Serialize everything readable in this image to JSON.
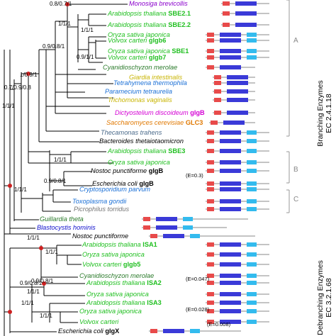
{
  "colors": {
    "green": "#1fbf1f",
    "gray": "#777777",
    "olive": "#2a7a2a",
    "yellow": "#c8b400",
    "blue": "#1a6fd6",
    "magenta": "#d400d4",
    "orange": "#e07800",
    "slate": "#4a6a8a",
    "black": "#000000",
    "purple": "#8a00cc",
    "dblue": "#1010cc",
    "lblue": "#2aa0e0",
    "domain_red": "#e84a4a",
    "domain_blue": "#3a3ad8",
    "domain_cyan": "#33bbee"
  },
  "taxa": [
    {
      "species": "Monosiga brevicollis",
      "gene": "",
      "color": "purple"
    },
    {
      "species": "Arabidopsis thaliana",
      "gene": "SBE2.1",
      "color": "green"
    },
    {
      "species": "Arabidopsis thaliana",
      "gene": "SBE2.2",
      "color": "green"
    },
    {
      "species": "Oryza sativa japonica",
      "gene": "",
      "color": "green"
    },
    {
      "species": "Volvox carteri",
      "gene": "glgb6",
      "color": "green"
    },
    {
      "species": "Oryza sativa japonica",
      "gene": "SBE1",
      "color": "green"
    },
    {
      "species": "Volvox carteri",
      "gene": "glgb7",
      "color": "green"
    },
    {
      "species": "Cyanidioschyzon merolae",
      "gene": "",
      "color": "olive"
    },
    {
      "species": "Giardia intestinalis",
      "gene": "",
      "color": "yellow"
    },
    {
      "species": "Tetrahymena thermophila",
      "gene": "",
      "color": "blue"
    },
    {
      "species": "Paramecium tetraurelia",
      "gene": "",
      "color": "blue"
    },
    {
      "species": "Trichomonas vaginalis",
      "gene": "",
      "color": "yellow"
    },
    {
      "species": "Dictyostelium discoideum",
      "gene": "glgB",
      "color": "magenta"
    },
    {
      "species": "Saccharomyces cerevisiae",
      "gene": "GLC3",
      "color": "orange"
    },
    {
      "species": "Thecamonas trahens",
      "gene": "",
      "color": "slate"
    },
    {
      "species": "Bacteroides thetaiotaomicron",
      "gene": "",
      "color": "black"
    },
    {
      "species": "Arabidopsis thaliana",
      "gene": "SBE3",
      "color": "green"
    },
    {
      "species": "Oryza sativa japonica",
      "gene": "",
      "color": "green"
    },
    {
      "species": "Nostoc punctiforme",
      "gene": "glgB",
      "color": "black"
    },
    {
      "species": "Escherichia coli",
      "gene": "glgB",
      "color": "black"
    },
    {
      "species": "Cryptosporidium parvum",
      "gene": "",
      "color": "blue"
    },
    {
      "species": "Toxoplasma gondii",
      "gene": "",
      "color": "blue"
    },
    {
      "species": "Picrophilus torridus",
      "gene": "",
      "color": "gray"
    },
    {
      "species": "Guillardia theta",
      "gene": "",
      "color": "olive"
    },
    {
      "species": "Blastocystis hominis",
      "gene": "",
      "color": "dblue"
    },
    {
      "species": "Nostoc punctiforme",
      "gene": "",
      "color": "black"
    },
    {
      "species": "Arabidopsis thaliana",
      "gene": "ISA1",
      "color": "green"
    },
    {
      "species": "Oryza sativa japonica",
      "gene": "",
      "color": "green"
    },
    {
      "species": "Volvox carteri",
      "gene": "glgb5",
      "color": "green"
    },
    {
      "species": "Cyanidioschyzon merolae",
      "gene": "",
      "color": "olive"
    },
    {
      "species": "Arabidopsis thaliana",
      "gene": "ISA2",
      "color": "green"
    },
    {
      "species": "Oryza sativa japonica",
      "gene": "",
      "color": "green"
    },
    {
      "species": "Arabidopsis thaliana",
      "gene": "ISA3",
      "color": "green"
    },
    {
      "species": "Oryza sativa japonica",
      "gene": "",
      "color": "green"
    },
    {
      "species": "Volvox carteri",
      "gene": "",
      "color": "green"
    },
    {
      "species": "Escherichia coli",
      "gene": "glgX",
      "color": "black"
    }
  ],
  "support_labels": [
    "0.8/0.7/1",
    "1/1/1",
    "0.9/0.8/1",
    "1/1/1",
    "0.9/1/1",
    "1/0.9/1",
    "1/1/1",
    "0.7/0.9/0.8",
    "1/1/1",
    "1/1/1",
    "0.9/0.8/1",
    "1/1/1",
    "1/1/1",
    "0.9/0.8/1",
    "0.9/0.8/1",
    "1/1/1",
    "1/1/1",
    "1/1/1"
  ],
  "evalues": [
    "(E=0.3)",
    "(E=0.047)",
    "(E=0.028)",
    "(E=0.008)"
  ],
  "sections": {
    "A": "A",
    "B": "B",
    "C": "C"
  },
  "side_labels": {
    "branching_1": "Branching Enzymes",
    "branching_2": "EC 2.4.1.18",
    "debranching_1": "Debranching Enzymes",
    "debranching_2": "EC 3.2.1.68"
  }
}
